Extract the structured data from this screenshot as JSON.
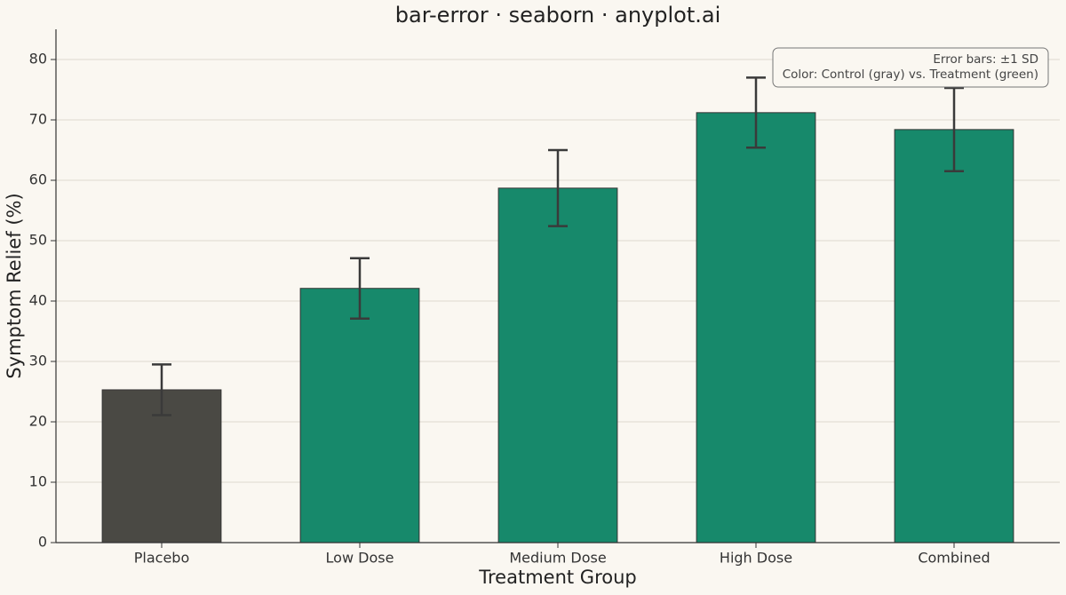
{
  "chart_data": {
    "type": "bar",
    "title": "bar-error · seaborn · anyplot.ai",
    "x_label": "Treatment Group",
    "y_label": "Symptom Relief (%)",
    "categories": [
      "Placebo",
      "Low Dose",
      "Medium Dose",
      "High Dose",
      "Combined"
    ],
    "values": [
      25.3,
      42.1,
      58.7,
      71.2,
      68.4
    ],
    "errors": [
      4.2,
      5.0,
      6.3,
      5.8,
      6.9
    ],
    "colors": [
      "#4a4944",
      "#17896b",
      "#17896b",
      "#17896b",
      "#17896b"
    ],
    "ylim": [
      0,
      85
    ],
    "yticks": [
      0,
      10,
      20,
      30,
      40,
      50,
      60,
      70,
      80
    ],
    "grid": true,
    "annotations": [
      "Error bars: ±1 SD",
      "Color: Control (gray) vs. Treatment (green)"
    ]
  }
}
